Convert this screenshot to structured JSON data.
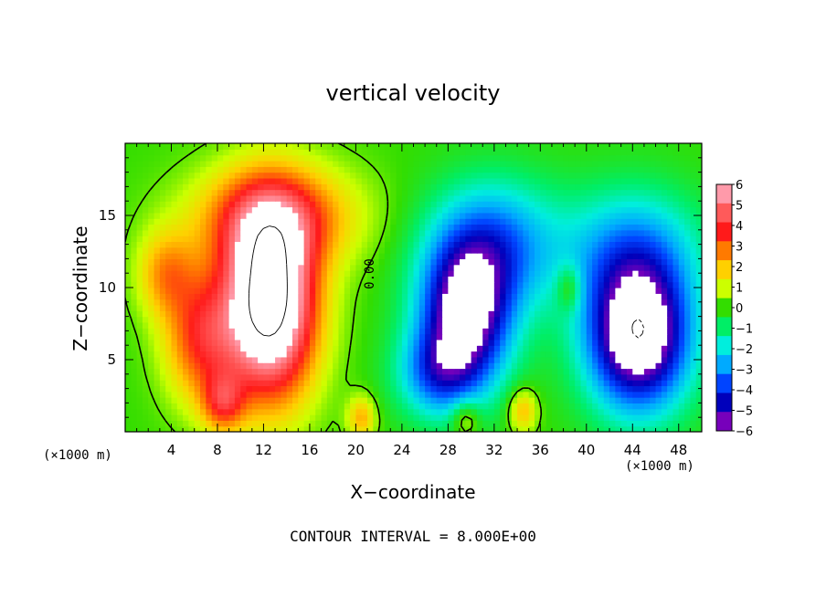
{
  "chart_data": {
    "type": "heatmap",
    "title": "vertical velocity",
    "xlabel": "X−coordinate",
    "ylabel": "Z−coordinate",
    "x_unit": "(×1000 m)",
    "footer": "CONTOUR INTERVAL = 8.000E+00",
    "xlim": [
      0,
      50
    ],
    "ylim": [
      0,
      20
    ],
    "x_ticks": [
      4,
      8,
      12,
      16,
      20,
      24,
      28,
      32,
      36,
      40,
      44,
      48
    ],
    "y_ticks": [
      5,
      10,
      15
    ],
    "colorbar": {
      "ticks": [
        6,
        5,
        4,
        3,
        2,
        1,
        0,
        -1,
        -2,
        -3,
        -4,
        -5,
        -6
      ],
      "tick_labels": [
        "6",
        "5",
        "4",
        "3",
        "2",
        "1",
        "0",
        "−1",
        "−2",
        "−3",
        "−4",
        "−5",
        "−6"
      ],
      "range": [
        -6,
        6
      ],
      "colors": [
        "#ff9aaa",
        "#ff5a5a",
        "#ff1a1a",
        "#ff7a00",
        "#ffd000",
        "#ccff00",
        "#33dd00",
        "#00ee66",
        "#00eedd",
        "#00aaff",
        "#0044ff",
        "#0000bb",
        "#7700bb"
      ]
    },
    "contour_label": "0.00",
    "blobs": [
      {
        "x": 6.5,
        "z": 6.5,
        "w": 3.5,
        "sx": 3.2,
        "sz": 4.5
      },
      {
        "x": 12.5,
        "z": 9.0,
        "w": 9.0,
        "sx": 4.0,
        "sz": 6.5
      },
      {
        "x": 13.0,
        "z": 15.0,
        "w": 3.5,
        "sx": 7.0,
        "sz": 3.5
      },
      {
        "x": 3.5,
        "z": 11.0,
        "w": 2.5,
        "sx": 2.5,
        "sz": 3.0
      },
      {
        "x": 8.5,
        "z": 2.0,
        "w": 3.0,
        "sx": 1.8,
        "sz": 2.0
      },
      {
        "x": 20.5,
        "z": 1.0,
        "w": 2.5,
        "sx": 1.2,
        "sz": 1.5
      },
      {
        "x": 29.5,
        "z": 1.0,
        "w": 2.0,
        "sx": 1.2,
        "sz": 1.3
      },
      {
        "x": 34.5,
        "z": 1.5,
        "w": 2.5,
        "sx": 1.2,
        "sz": 1.5
      },
      {
        "x": 29.5,
        "z": 8.0,
        "w": -6.5,
        "sx": 4.0,
        "sz": 5.0
      },
      {
        "x": 44.5,
        "z": 6.5,
        "w": -7.5,
        "sx": 4.5,
        "sz": 5.0
      },
      {
        "x": 32.0,
        "z": 13.0,
        "w": -3.5,
        "sx": 5.5,
        "sz": 4.5
      },
      {
        "x": 44.0,
        "z": 12.5,
        "w": -3.0,
        "sx": 6.0,
        "sz": 4.5
      },
      {
        "x": 27.0,
        "z": 4.0,
        "w": -3.0,
        "sx": 3.5,
        "sz": 3.0
      },
      {
        "x": 38.5,
        "z": 10.0,
        "w": 2.0,
        "sx": 1.0,
        "sz": 1.6
      }
    ]
  }
}
